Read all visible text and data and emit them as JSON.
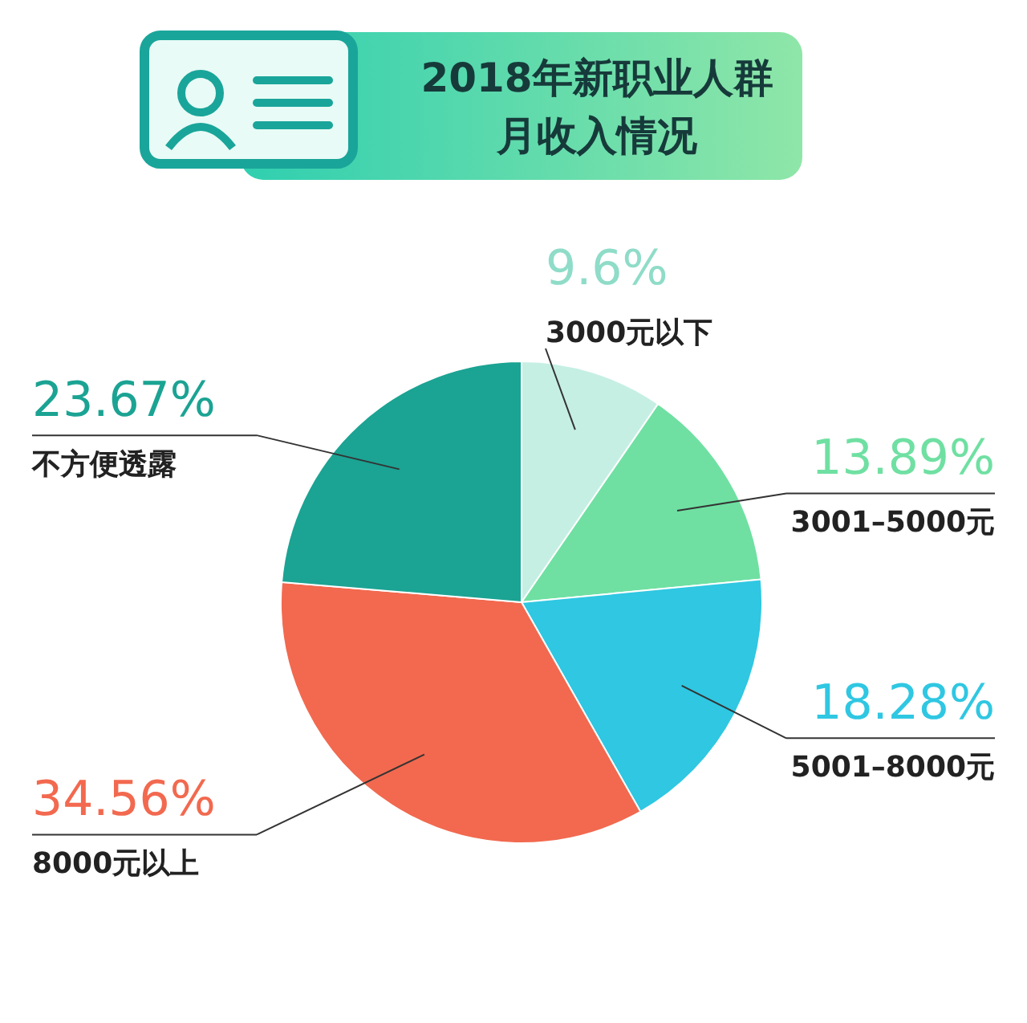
{
  "chart_data": {
    "type": "pie",
    "title": "2018年新职业人群月收入情况",
    "categories": [
      "3000元以下",
      "3001–5000元",
      "5001–8000元",
      "8000元以上",
      "不方便透露"
    ],
    "values": [
      9.6,
      13.89,
      18.28,
      34.56,
      23.67
    ],
    "colors": [
      "#c6efe4",
      "#6fe0a2",
      "#2fc7e2",
      "#f2694f",
      "#1ba393"
    ],
    "value_labels": [
      "9.6%",
      "13.89%",
      "18.28%",
      "34.56%",
      "23.67%"
    ]
  }
}
